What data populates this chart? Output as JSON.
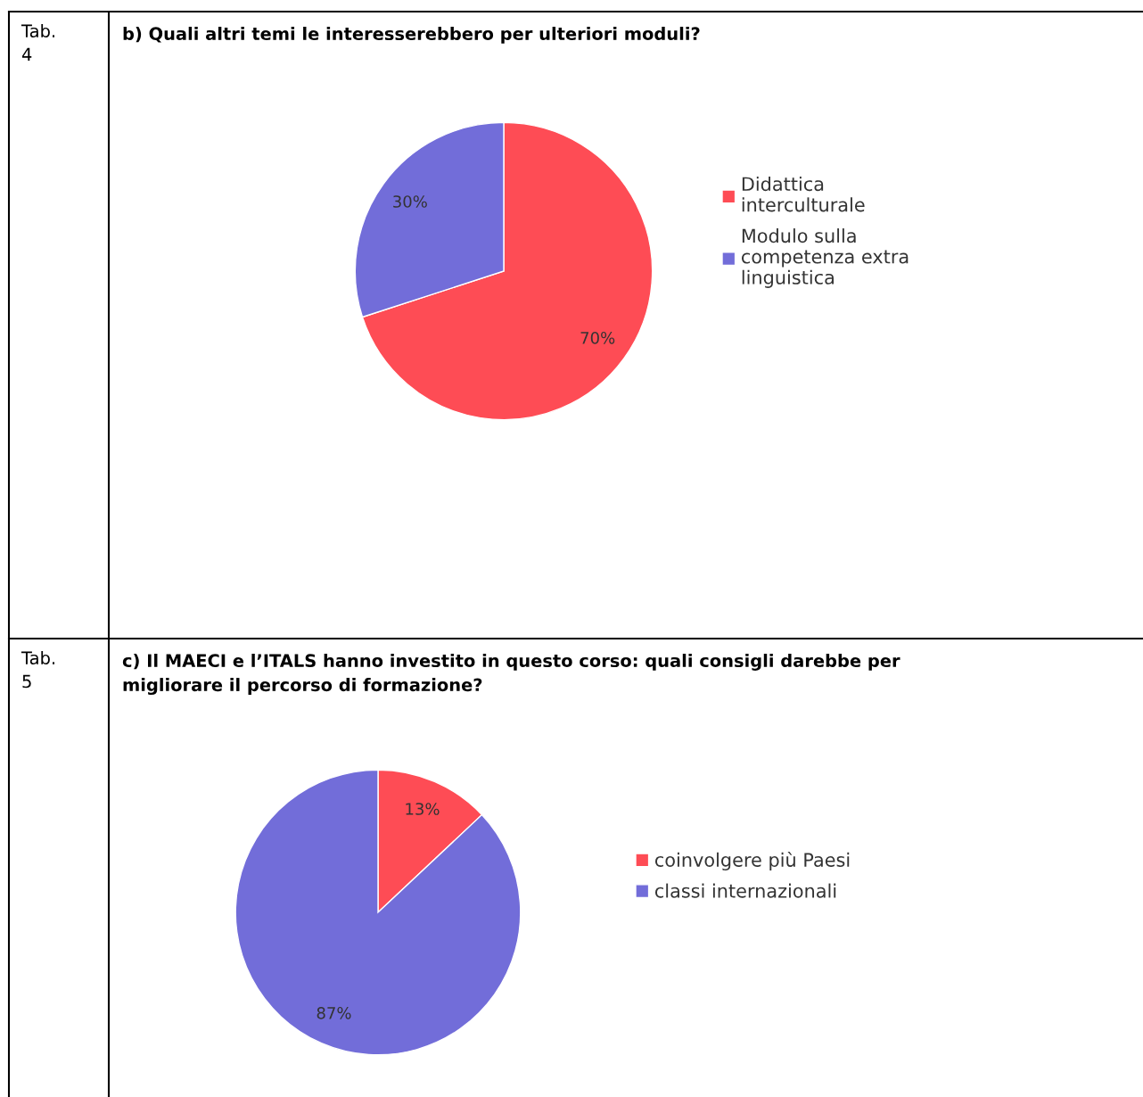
{
  "chart_data": [
    {
      "type": "pie",
      "title": "b) Quali altri temi le interesserebbero per ulteriori moduli?",
      "annotations": [
        "Tab. 4"
      ],
      "categories": [
        "Didattica interculturale",
        "Modulo sulla competenza extra linguistica"
      ],
      "values": [
        70,
        30
      ],
      "colors": [
        "#fe4c55",
        "#726dd9"
      ],
      "value_labels": [
        "70%",
        "30%"
      ],
      "legend": "right"
    },
    {
      "type": "pie",
      "title": "c) Il MAECI e l’ITALS hanno investito in questo corso: quali consigli darebbe per migliorare il percorso di formazione?",
      "annotations": [
        "Tab. 5"
      ],
      "categories": [
        "coinvolgere più Paesi",
        "classi internazionali"
      ],
      "values": [
        13,
        87
      ],
      "colors": [
        "#fe4c55",
        "#726dd9"
      ],
      "value_labels": [
        "13%",
        "87%"
      ],
      "legend": "right"
    }
  ]
}
